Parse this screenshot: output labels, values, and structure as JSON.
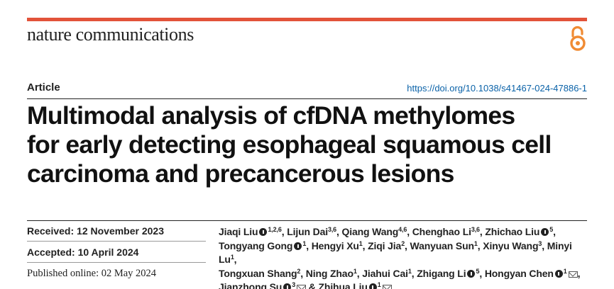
{
  "colors": {
    "accent": "#e2533a",
    "link": "#0a62a8",
    "text": "#222222"
  },
  "header": {
    "journal": "nature communications",
    "open_access_icon": "open-access-icon"
  },
  "article": {
    "type": "Article",
    "doi": "https://doi.org/10.1038/s41467-024-47886-1",
    "title_lines": [
      "Multimodal analysis of cfDNA methylomes",
      "for early detecting esophageal squamous cell",
      "carcinoma and precancerous lesions"
    ]
  },
  "dates": {
    "received": "Received: 12 November 2023",
    "accepted": "Accepted: 10 April 2024",
    "published": "Published online: 02 May 2024"
  },
  "authors": [
    {
      "name": "Jiaqi Liu",
      "sup": "1,2,6",
      "orcid": true,
      "mail": false
    },
    {
      "name": "Lijun Dai",
      "sup": "3,6",
      "orcid": false,
      "mail": false
    },
    {
      "name": "Qiang Wang",
      "sup": "4,6",
      "orcid": false,
      "mail": false
    },
    {
      "name": "Chenghao Li",
      "sup": "3,6",
      "orcid": false,
      "mail": false
    },
    {
      "name": "Zhichao Liu",
      "sup": "5",
      "orcid": true,
      "mail": false
    },
    {
      "name": "Tongyang Gong",
      "sup": "1",
      "orcid": true,
      "mail": false
    },
    {
      "name": "Hengyi Xu",
      "sup": "1",
      "orcid": false,
      "mail": false
    },
    {
      "name": "Ziqi Jia",
      "sup": "2",
      "orcid": false,
      "mail": false
    },
    {
      "name": "Wanyuan Sun",
      "sup": "1",
      "orcid": false,
      "mail": false
    },
    {
      "name": "Xinyu Wang",
      "sup": "3",
      "orcid": false,
      "mail": false
    },
    {
      "name": "Minyi Lu",
      "sup": "1",
      "orcid": false,
      "mail": false
    },
    {
      "name": "Tongxuan Shang",
      "sup": "2",
      "orcid": false,
      "mail": false
    },
    {
      "name": "Ning Zhao",
      "sup": "1",
      "orcid": false,
      "mail": false
    },
    {
      "name": "Jiahui Cai",
      "sup": "1",
      "orcid": false,
      "mail": false
    },
    {
      "name": "Zhigang Li",
      "sup": "5",
      "orcid": true,
      "mail": false
    },
    {
      "name": "Hongyan Chen",
      "sup": "1",
      "orcid": true,
      "mail": true
    },
    {
      "name": "Jianzhong Su",
      "sup": "3",
      "orcid": true,
      "mail": true
    },
    {
      "name": "Zhihua Liu",
      "sup": "1",
      "orcid": true,
      "mail": true
    }
  ]
}
